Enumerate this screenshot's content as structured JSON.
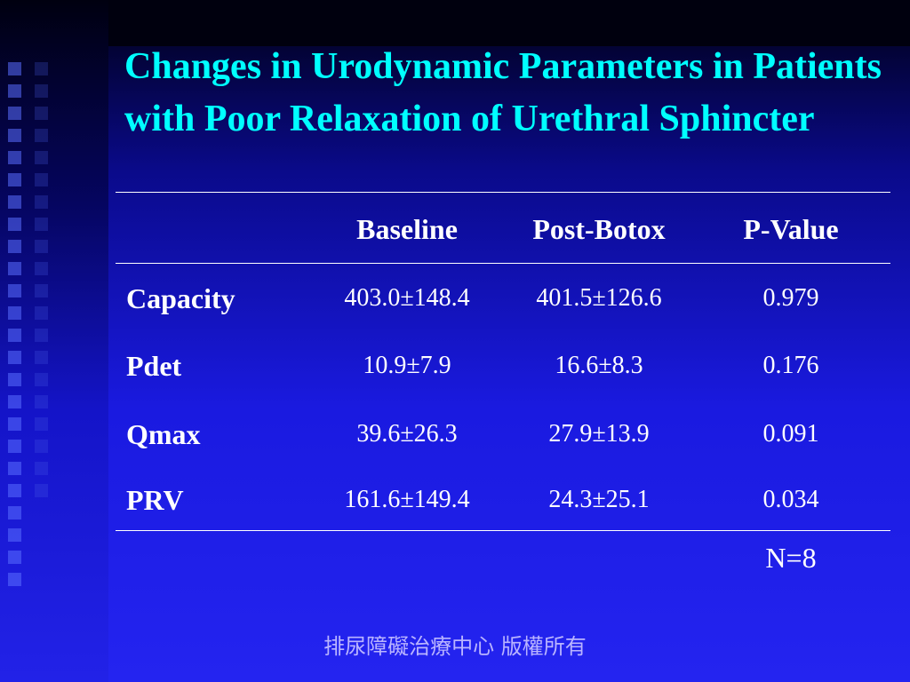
{
  "title": "Changes in Urodynamic Parameters in Patients with Poor Relaxation of Urethral Sphincter",
  "table": {
    "columns": [
      "",
      "Baseline",
      "Post-Botox",
      "P-Value"
    ],
    "rows": [
      {
        "label": "Capacity",
        "baseline": "403.0±148.4",
        "post_botox": "401.5±126.6",
        "p_value": "0.979"
      },
      {
        "label": "Pdet",
        "baseline": "10.9±7.9",
        "post_botox": "16.6±8.3",
        "p_value": "0.176"
      },
      {
        "label": "Qmax",
        "baseline": "39.6±26.3",
        "post_botox": "27.9±13.9",
        "p_value": "0.091"
      },
      {
        "label": "PRV",
        "baseline": "161.6±149.4",
        "post_botox": "24.3±25.1",
        "p_value": "0.034"
      }
    ]
  },
  "note": "N=8",
  "footer": "排尿障礙治療中心 版權所有",
  "colors": {
    "title": "#00ffff",
    "text": "#ffffff",
    "footer": "#b9b4ff",
    "background": "#2424f0"
  }
}
